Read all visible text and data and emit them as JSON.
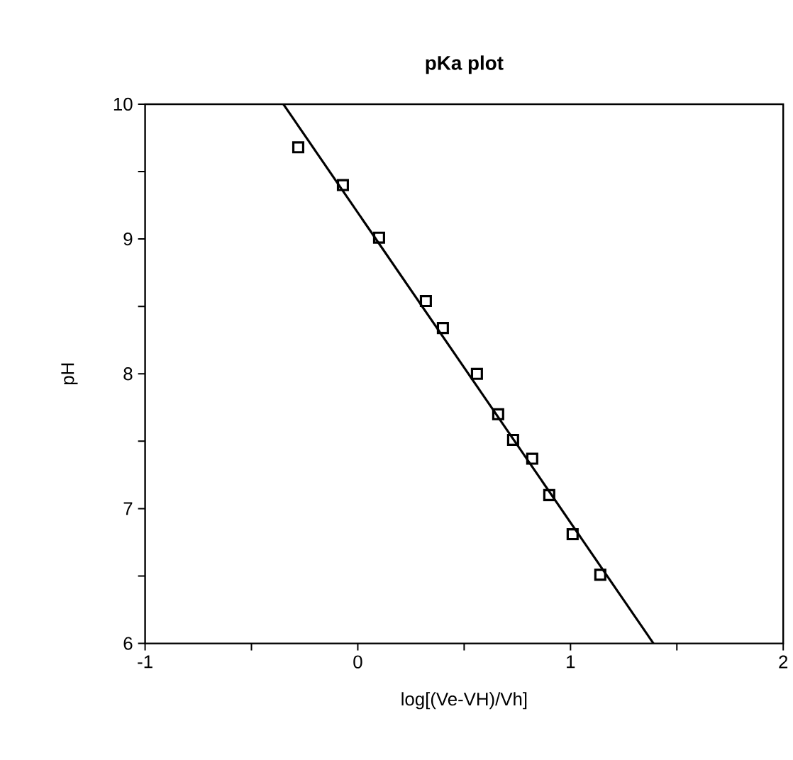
{
  "chart_data": {
    "type": "scatter",
    "title": "pKa plot",
    "xlabel": "log[(Ve-VH)/Vh]",
    "ylabel": "pH",
    "xlim": [
      -1,
      2
    ],
    "ylim": [
      6,
      10
    ],
    "xticks": [
      -1,
      {
        "value": -0.5,
        "label": null
      },
      0,
      {
        "value": 0.5,
        "label": null
      },
      1,
      {
        "value": 1.5,
        "label": null
      },
      2
    ],
    "yticks": [
      6,
      {
        "value": 6.5,
        "label": null
      },
      7,
      {
        "value": 7.5,
        "label": null
      },
      8,
      {
        "value": 8.5,
        "label": null
      },
      9,
      {
        "value": 9.5,
        "label": null
      },
      10
    ],
    "grid": false,
    "series": [
      {
        "marker": "square",
        "color": "#000000",
        "x": [
          -0.28,
          -0.07,
          0.1,
          0.32,
          0.4,
          0.56,
          0.66,
          0.73,
          0.82,
          0.9,
          1.01,
          1.14
        ],
        "values": [
          9.68,
          9.4,
          9.01,
          8.54,
          8.34,
          8.0,
          7.7,
          7.51,
          7.37,
          7.1,
          6.81,
          6.51
        ]
      },
      {
        "type": "line",
        "marker": "none",
        "line_style": "solid",
        "color": "#000000",
        "x": [
          -0.35,
          1.39
        ],
        "values": [
          10,
          6
        ]
      }
    ]
  }
}
